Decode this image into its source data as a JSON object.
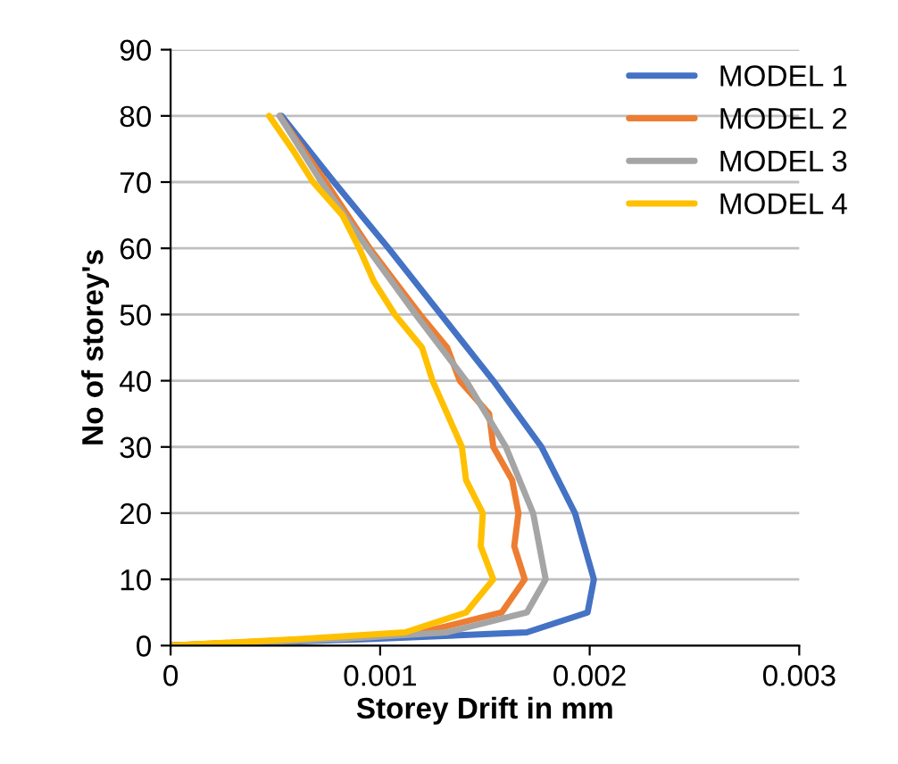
{
  "chart_data": {
    "type": "line",
    "xlabel": "Storey Drift in mm",
    "ylabel": "No of storey's",
    "xlim": [
      0,
      0.003
    ],
    "xticks": [
      0,
      0.001,
      0.002,
      0.003
    ],
    "ylim": [
      0,
      90
    ],
    "yticks": [
      0,
      10,
      20,
      30,
      40,
      50,
      60,
      70,
      80,
      90
    ],
    "grid": "y",
    "legend": "top right",
    "marker": "none",
    "line_style": "solid",
    "series": [
      {
        "name": "MODEL 1",
        "color": "#4472c4",
        "x": [
          0,
          0.00097,
          0.0017,
          0.00199,
          0.00202,
          0.00193,
          0.00177,
          0.00154,
          0.00129,
          0.00104,
          0.00078,
          0.00053
        ],
        "values": [
          0,
          1,
          2,
          5,
          10,
          20,
          30,
          40,
          50,
          60,
          70,
          80
        ]
      },
      {
        "name": "MODEL 2",
        "color": "#ed7d31",
        "x": [
          0,
          0.00068,
          0.0012,
          0.00158,
          0.00169,
          0.00164,
          0.00166,
          0.00163,
          0.00154,
          0.00152,
          0.00138,
          0.00132,
          0.00119,
          0.00107,
          0.00095,
          0.00074,
          0.00052
        ],
        "values": [
          0,
          1,
          2,
          5,
          10,
          15,
          20,
          25,
          30,
          35,
          40,
          45,
          50,
          55,
          60,
          70,
          80
        ]
      },
      {
        "name": "MODEL 3",
        "color": "#a5a5a5",
        "x": [
          0,
          0.00082,
          0.00132,
          0.0017,
          0.00179,
          0.00173,
          0.0016,
          0.00141,
          0.00117,
          0.00094,
          0.00072,
          0.00052
        ],
        "values": [
          0,
          1,
          2,
          5,
          10,
          20,
          30,
          40,
          50,
          60,
          70,
          80
        ]
      },
      {
        "name": "MODEL 4",
        "color": "#ffc000",
        "x": [
          0,
          0.00062,
          0.00112,
          0.00141,
          0.00154,
          0.00148,
          0.00149,
          0.00141,
          0.00139,
          0.00132,
          0.00125,
          0.0012,
          0.00107,
          0.00097,
          0.0009,
          0.00082,
          0.00068,
          0.00058,
          0.00047
        ],
        "values": [
          0,
          1,
          2,
          5,
          10,
          15,
          20,
          25,
          30,
          35,
          40,
          45,
          50,
          55,
          60,
          65,
          70,
          75,
          80
        ]
      }
    ]
  }
}
